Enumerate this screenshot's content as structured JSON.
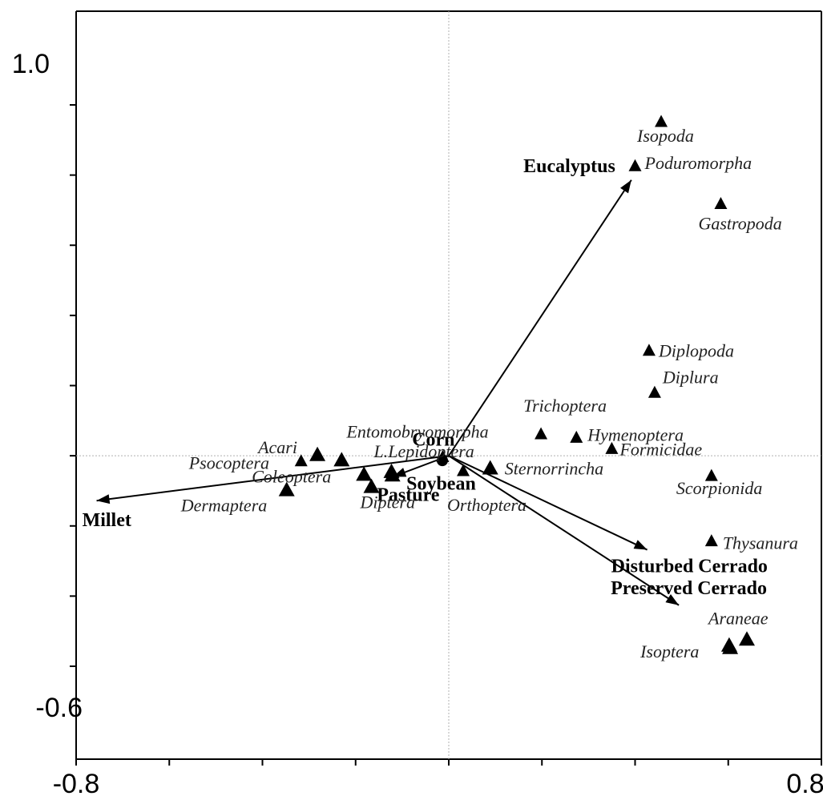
{
  "chart_data": {
    "type": "scatter",
    "title": "",
    "xlabel": "",
    "ylabel": "",
    "xlim": [
      -0.8,
      0.8
    ],
    "ylim": [
      -0.6,
      1.0
    ],
    "x_tick_labels": [
      "-0.8",
      "0.8"
    ],
    "y_tick_labels": [
      "1.0",
      "-0.6"
    ],
    "reference_lines": {
      "x": 0,
      "y": 0
    },
    "grid": false,
    "legend": "none",
    "species": [
      {
        "name": "Isopoda",
        "x": 0.456,
        "y": 0.952
      },
      {
        "name": "Poduromorpha",
        "x": 0.4,
        "y": 0.826
      },
      {
        "name": "Gastropoda",
        "x": 0.584,
        "y": 0.718
      },
      {
        "name": "Diplopoda",
        "x": 0.43,
        "y": 0.3
      },
      {
        "name": "Diplura",
        "x": 0.442,
        "y": 0.18
      },
      {
        "name": "Trichoptera",
        "x": 0.198,
        "y": 0.062
      },
      {
        "name": "Hymenoptera",
        "x": 0.274,
        "y": 0.052
      },
      {
        "name": "Formicidae",
        "x": 0.35,
        "y": 0.02
      },
      {
        "name": "Entomobryomorpha",
        "x": -0.013,
        "y": -0.003
      },
      {
        "name": "Acari",
        "x": -0.282,
        "y": 0.003
      },
      {
        "name": "Psocoptera",
        "x": -0.317,
        "y": -0.015
      },
      {
        "name": "Coleoptera",
        "x": -0.182,
        "y": -0.053
      },
      {
        "name": "L.Lepidoptera",
        "x": -0.123,
        "y": -0.045
      },
      {
        "name": "Sternorrincha",
        "x": 0.089,
        "y": -0.035
      },
      {
        "name": "Scorpionida",
        "x": 0.564,
        "y": -0.057
      },
      {
        "name": "Dermaptera",
        "x": -0.348,
        "y": -0.097
      },
      {
        "name": "Diptera",
        "x": -0.166,
        "y": -0.088
      },
      {
        "name": "Orthoptera",
        "x": 0.031,
        "y": -0.043
      },
      {
        "name": "Thysanura",
        "x": 0.564,
        "y": -0.243
      },
      {
        "name": "Araneae",
        "x": 0.64,
        "y": -0.523
      },
      {
        "name": "Isoptera",
        "x": 0.604,
        "y": -0.547
      },
      {
        "name": "",
        "x": -0.23,
        "y": -0.012
      },
      {
        "name": "",
        "x": -0.121,
        "y": -0.055
      },
      {
        "name": "",
        "x": 0.602,
        "y": -0.54
      }
    ],
    "environmental_vectors": [
      {
        "name": "Eucalyptus",
        "x": 0.392,
        "y": 0.786
      },
      {
        "name": "Millet",
        "x": -0.756,
        "y": -0.128
      },
      {
        "name": "Disturbed Cerrado",
        "x": 0.426,
        "y": -0.268
      },
      {
        "name": "Preserved Cerrado",
        "x": 0.494,
        "y": -0.426
      },
      {
        "name": "Corn",
        "x": -0.01,
        "y": 0.01
      },
      {
        "name": "Soybean",
        "x": -0.005,
        "y": -0.01
      },
      {
        "name": "Pasture",
        "x": -0.12,
        "y": -0.06
      }
    ]
  }
}
